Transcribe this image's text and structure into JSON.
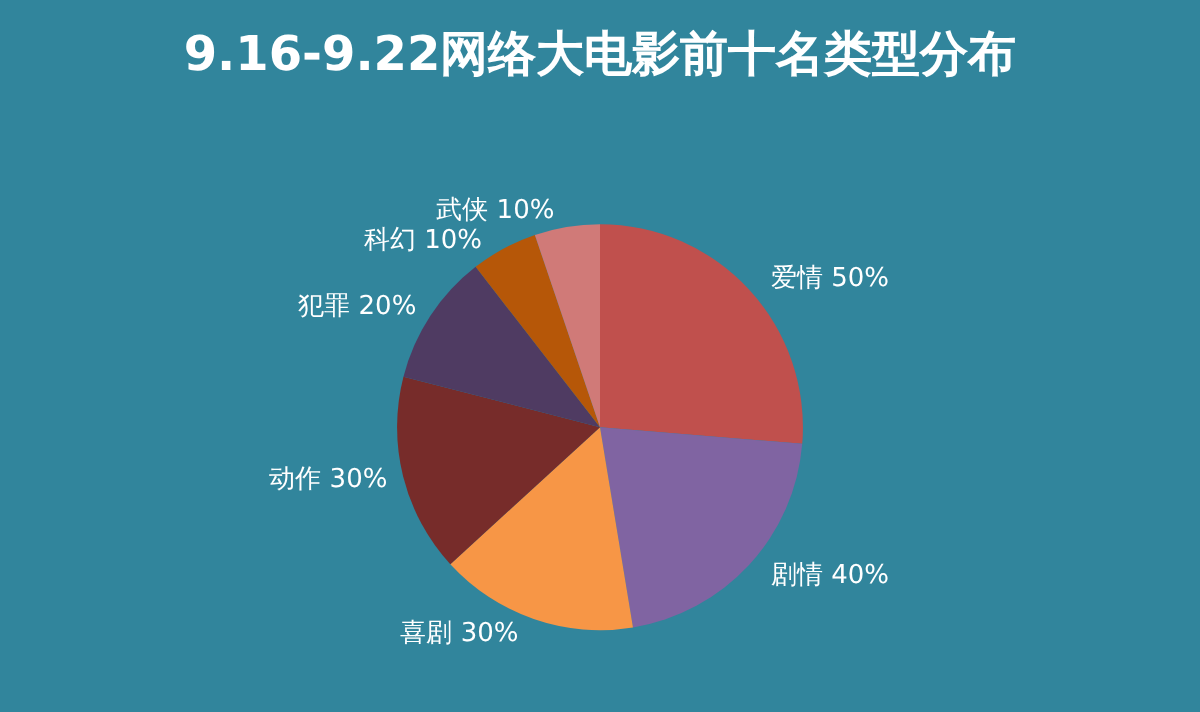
{
  "chart_data": {
    "type": "pie",
    "title": "9.16-9.22网络大电影前十名类型分布",
    "categories": [
      "爱情 50%",
      "剧情 40%",
      "喜剧 30%",
      "动作 30%",
      "犯罪 20%",
      "科幻 10%",
      "武侠 10%"
    ],
    "values": [
      26.3,
      21.1,
      15.8,
      15.8,
      10.5,
      5.3,
      5.2
    ],
    "colors": [
      "#c0504d",
      "#8064a2",
      "#f79646",
      "#772c2a",
      "#4f3b62",
      "#b65708",
      "#d07a78"
    ],
    "legend": false
  }
}
